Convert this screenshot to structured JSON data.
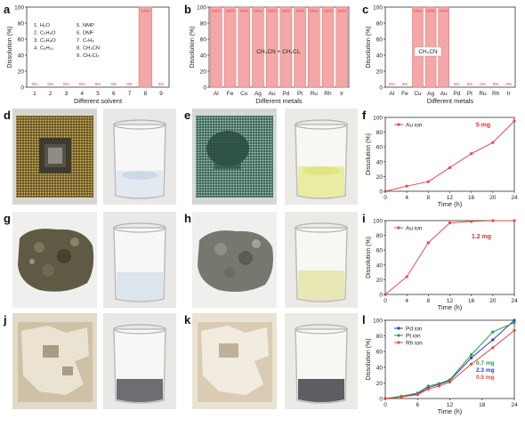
{
  "figure": {
    "panel_labels": [
      "a",
      "b",
      "c",
      "d",
      "e",
      "f",
      "g",
      "h",
      "i",
      "j",
      "k",
      "l"
    ],
    "photo_descriptions": {}
  },
  "chart_data": [
    {
      "id": "a",
      "type": "bar",
      "categories": [
        "1",
        "2",
        "3",
        "4",
        "5",
        "6",
        "7",
        "8",
        "9"
      ],
      "values": [
        0,
        0,
        0,
        0,
        0,
        0,
        0,
        100,
        0
      ],
      "data_labels": [
        "0%",
        "0%",
        "0%",
        "0%",
        "0%",
        "0%",
        "0%",
        "100%",
        "0%"
      ],
      "xlabel": "Different solvent",
      "ylabel": "Dissolution (%)",
      "ylim": [
        0,
        100
      ],
      "yticks": [
        "0",
        "20",
        "40",
        "60",
        "80",
        "100"
      ],
      "legend_lines": [
        {
          "num": "1.",
          "text": "H₂O"
        },
        {
          "num": "2.",
          "text": "C₂H₆O"
        },
        {
          "num": "3.",
          "text": "C₃H₈O"
        },
        {
          "num": "4.",
          "text": "C₆H₁₄"
        },
        {
          "num": "5.",
          "text": "NMP"
        },
        {
          "num": "6.",
          "text": "DMF"
        },
        {
          "num": "7.",
          "text": "C₇H₈"
        },
        {
          "num": "8.",
          "text": "CH₃CN"
        },
        {
          "num": "9.",
          "text": "CH₂Cl₂"
        }
      ],
      "bar_color": "#f4a7a7"
    },
    {
      "id": "b",
      "type": "bar",
      "categories": [
        "Al",
        "Fe",
        "Cu",
        "Ag",
        "Au",
        "Pd",
        "Pt",
        "Ru",
        "Rh",
        "Ir"
      ],
      "values": [
        100,
        100,
        100,
        100,
        100,
        100,
        100,
        100,
        100,
        100
      ],
      "data_labels": [
        "100%",
        "100%",
        "100%",
        "100%",
        "100%",
        "100%",
        "100%",
        "100%",
        "100%",
        "100%"
      ],
      "xlabel": "Different metals",
      "ylabel": "Dissolution (%)",
      "ylim": [
        0,
        100
      ],
      "yticks": [
        "0",
        "20",
        "40",
        "60",
        "80",
        "100"
      ],
      "annotation": "CH₃CN + CH₂Cl₂",
      "bar_color": "#f4a7a7"
    },
    {
      "id": "c",
      "type": "bar",
      "categories": [
        "Al",
        "Fe",
        "Cu",
        "Ag",
        "Au",
        "Pd",
        "Pt",
        "Ru",
        "Rh",
        "Ir"
      ],
      "values": [
        0,
        0,
        100,
        100,
        100,
        0,
        0,
        0,
        0,
        0
      ],
      "data_labels": [
        "0%",
        "0%",
        "100%",
        "100%",
        "100%",
        "0%",
        "0%",
        "0%",
        "0%",
        "0%"
      ],
      "xlabel": "Different metals",
      "ylabel": "Dissolution (%)",
      "ylim": [
        0,
        100
      ],
      "yticks": [
        "0",
        "20",
        "40",
        "60",
        "80",
        "100"
      ],
      "annotation": "CH₃CN",
      "bar_color": "#f4a7a7"
    },
    {
      "id": "f",
      "type": "line",
      "x": [
        0,
        4,
        8,
        12,
        16,
        20,
        24
      ],
      "series": [
        {
          "name": "Au ion",
          "values": [
            0,
            7,
            13,
            32,
            51,
            66,
            95
          ],
          "color": "#e8474a"
        }
      ],
      "annotation": "5 mg",
      "xlabel": "Time (h)",
      "ylabel": "Dissolution (%)",
      "xlim": [
        0,
        24
      ],
      "ylim": [
        0,
        100
      ],
      "xticks": [
        "0",
        "4",
        "8",
        "12",
        "16",
        "20",
        "24"
      ],
      "yticks": [
        "0",
        "20",
        "40",
        "60",
        "80",
        "100"
      ]
    },
    {
      "id": "i",
      "type": "line",
      "x": [
        0,
        4,
        8,
        12,
        16,
        20,
        24
      ],
      "series": [
        {
          "name": "Au ion",
          "values": [
            0,
            24,
            70,
            97,
            99,
            100,
            100
          ],
          "color": "#e8474a"
        }
      ],
      "annotation": "1.2 mg",
      "xlabel": "Time (h)",
      "ylabel": "Dissolution (%)",
      "xlim": [
        0,
        24
      ],
      "ylim": [
        0,
        100
      ],
      "xticks": [
        "0",
        "4",
        "8",
        "12",
        "16",
        "20",
        "24"
      ],
      "yticks": [
        "0",
        "20",
        "40",
        "60",
        "80",
        "100"
      ]
    },
    {
      "id": "l",
      "type": "line",
      "x": [
        0,
        3,
        6,
        8,
        10,
        12,
        16,
        20,
        24
      ],
      "series": [
        {
          "name": "Pd ion",
          "values": [
            0,
            2,
            6,
            14,
            18,
            23,
            52,
            75,
            100
          ],
          "color": "#2a3cd6"
        },
        {
          "name": "Pt ion",
          "values": [
            0,
            3,
            7,
            16,
            19,
            24,
            56,
            85,
            97
          ],
          "color": "#2e9c3a"
        },
        {
          "name": "Rh ion",
          "values": [
            0,
            2,
            5,
            12,
            16,
            21,
            44,
            65,
            87
          ],
          "color": "#e8474a"
        }
      ],
      "amounts": [
        {
          "text": "0.7 mg",
          "color": "#2e9c3a"
        },
        {
          "text": "2.3 mg",
          "color": "#2a3cd6"
        },
        {
          "text": "0.5 mg",
          "color": "#e8474a"
        }
      ],
      "xlabel": "Time (h)",
      "ylabel": "Dissolution (%)",
      "xlim": [
        0,
        24
      ],
      "ylim": [
        0,
        100
      ],
      "xticks": [
        "0",
        "6",
        "12",
        "18",
        "24"
      ],
      "yticks": [
        "0",
        "20",
        "40",
        "60",
        "80",
        "100"
      ]
    }
  ]
}
